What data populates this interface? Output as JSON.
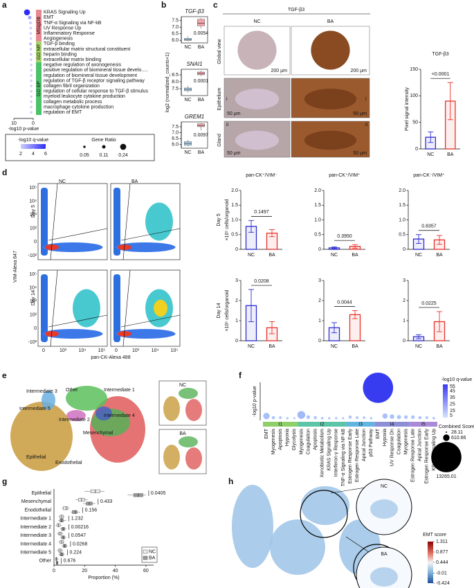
{
  "panel_labels": [
    "a",
    "b",
    "c",
    "d",
    "e",
    "f",
    "g",
    "h"
  ],
  "images": {
    "c": {
      "title": "TGF-β3",
      "groups": [
        "NC",
        "BA"
      ],
      "rows": [
        "Global view",
        "Epithelium",
        "Gland"
      ],
      "scale_global": "200 μm",
      "scale_detail": "50 μm",
      "insets": [
        "ii",
        "i"
      ]
    },
    "d": {
      "groups": [
        "NC",
        "BA"
      ],
      "rows": [
        "Day 5",
        "Day 14"
      ],
      "ylabel": "VIM-Alexa 647",
      "xlabel": "pan-CK-Alexa 488",
      "yticks": [
        "10⁵",
        "10⁴",
        "10³",
        "10²",
        "0",
        "-10²"
      ],
      "xticks": [
        "0",
        "10³",
        "10⁴",
        "10⁵"
      ]
    },
    "e": {
      "clusters": [
        "Intermediate 3",
        "Other",
        "Intermediate 1",
        "Intermediate 5",
        "Intermediate 4",
        "Intermediate 2",
        "Mesenchymal",
        "Epithelial",
        "Enodothelial"
      ],
      "groups": [
        "NC",
        "BA"
      ]
    },
    "h": {
      "groups": [
        "NC",
        "BA"
      ],
      "colorbar_title": "EMT score",
      "colorbar_lim": [
        -0.424,
        1.311
      ],
      "colorbar_ticks": [
        1.311,
        0.877,
        0.444,
        -0.01,
        -0.424
      ]
    }
  },
  "chart_data": [
    {
      "type": "dot",
      "xlabel": "-log10 p-value",
      "xlim": [
        10,
        0
      ],
      "xticks": [
        10,
        0
      ],
      "groups": [
        {
          "name": "MSigDB",
          "color": "#e8878f",
          "terms": [
            "KRAS Signaling Up",
            "EMT",
            "TNF-α Signaling via NF-kB",
            "UV Response Up",
            "Inflammatory Response",
            "Angiogenesis"
          ],
          "values": [
            3.2,
            1.8,
            1.4,
            1.3,
            1.3,
            1.2
          ],
          "q_values": [
            6,
            3,
            2,
            2,
            2,
            1.5
          ],
          "gene_ratios": [
            0.24,
            0.11,
            0.08,
            0.06,
            0.06,
            0.05
          ]
        },
        {
          "name": "GO MF",
          "color": "#a8d46f",
          "terms": [
            "TGF-β binding",
            "extracellular matrix structural constituent",
            "heparin binding",
            "extracellular matrix binding"
          ],
          "values": [
            1.4,
            1.2,
            1.1,
            1.1
          ],
          "q_values": [
            2.5,
            2,
            2,
            2
          ],
          "gene_ratios": [
            0.07,
            0.06,
            0.06,
            0.05
          ]
        },
        {
          "name": "GO BP",
          "color": "#4cc36a",
          "terms": [
            "negative regulation of axonogenesis",
            "positive regulation of biomineral tissue develo.....",
            "regulation of biomineral tissue development",
            "regulation of TGF-β receptor signaling pathway",
            "collagen fibril organization",
            "regulation of cellular response to TGF-β stimulus",
            "myeloid leukocyte cytokine production",
            "collagen metabolic process",
            "macrophage cytokine production",
            "regulation of EMT"
          ],
          "values": [
            1,
            1,
            1,
            1,
            1,
            1,
            1,
            1,
            1,
            1
          ],
          "q_values": [
            1.5,
            1.5,
            1.5,
            1.5,
            1.5,
            1.5,
            1.5,
            1.5,
            1.5,
            1.5
          ],
          "gene_ratios": [
            0.05,
            0.05,
            0.05,
            0.05,
            0.05,
            0.05,
            0.05,
            0.05,
            0.05,
            0.05
          ]
        }
      ],
      "legend": {
        "color_title": "-log10 q-value",
        "color_ticks": [
          2,
          4,
          6
        ],
        "size_title": "Gene Ratio",
        "size_ticks": [
          0.05,
          0.11,
          0.24
        ]
      }
    },
    {
      "type": "box",
      "title": "TGF-β3",
      "categories": [
        "NC",
        "BA"
      ],
      "colors": [
        "#a9cfe8",
        "#f2a3a8"
      ],
      "boxes": [
        [
          5.95,
          6.0,
          6.05,
          6.15,
          6.3
        ],
        [
          6.9,
          7.1,
          7.3,
          7.6,
          7.7
        ]
      ],
      "p_label": "0.0054",
      "ylim": [
        5.8,
        7.8
      ],
      "yticks": [
        {
          "value": 6,
          "label": "6.0"
        },
        6.5,
        {
          "value": 7,
          "label": "7.0"
        },
        7.5
      ]
    },
    {
      "type": "box",
      "title": "SNAI1",
      "ylabel": "log2 (normalized_counts+1)",
      "categories": [
        "NC",
        "BA"
      ],
      "colors": [
        "#a9cfe8",
        "#f2a3a8"
      ],
      "boxes": [
        [
          7.25,
          7.35,
          7.45,
          7.55,
          7.7
        ],
        [
          8.4,
          8.5,
          8.6,
          8.7,
          8.8
        ]
      ],
      "p_label": "0.0001",
      "ylim": [
        7.0,
        8.9
      ],
      "yticks": [
        7.5,
        {
          "value": 8,
          "label": "8.0"
        },
        8.5
      ]
    },
    {
      "type": "box",
      "title": "GREM1",
      "categories": [
        "NC",
        "BA"
      ],
      "colors": [
        "#a9cfe8",
        "#f2a3a8"
      ],
      "boxes": [
        [
          5.85,
          5.95,
          6.1,
          6.25,
          6.4
        ],
        [
          7.2,
          7.5,
          7.6,
          7.75,
          7.8
        ]
      ],
      "p_label": "0.0097",
      "ylim": [
        5.7,
        7.9
      ],
      "yticks": [
        {
          "value": 6,
          "label": "6.0"
        },
        6.5,
        {
          "value": 7,
          "label": "7.0"
        },
        7.5
      ]
    },
    {
      "type": "bar",
      "title": "TGF-β3",
      "ylabel": "Pixel signal intensity",
      "categories": [
        "NC",
        "BA"
      ],
      "colors": [
        "#2b2bd0",
        "#e8302a"
      ],
      "values": [
        22,
        90
      ],
      "errors": [
        10,
        35
      ],
      "p_label": "<0.0001",
      "ylim": [
        0,
        150
      ],
      "yticks": [
        0,
        50,
        100,
        150
      ]
    },
    {
      "type": "bar",
      "title": "pan-CK⁺/VIM⁻",
      "row_label": "Day 5",
      "ylabel": "×10⁵ cells/organoid",
      "categories": [
        "NC",
        "BA"
      ],
      "colors": [
        "#2b2bd0",
        "#e8302a"
      ],
      "values": [
        0.78,
        0.55
      ],
      "errors": [
        0.2,
        0.12
      ],
      "p_label": "0.1497",
      "ylim": [
        0,
        2
      ],
      "yticks": [
        0,
        0.5,
        {
          "value": 1,
          "label": "1.0"
        },
        1.5,
        {
          "value": 2,
          "label": "2.0"
        }
      ]
    },
    {
      "type": "bar",
      "title": "pan-CK⁺/VIM⁺",
      "categories": [
        "NC",
        "BA"
      ],
      "colors": [
        "#2b2bd0",
        "#e8302a"
      ],
      "values": [
        0.05,
        0.1
      ],
      "errors": [
        0.03,
        0.06
      ],
      "p_label": "0.3950",
      "ylim": [
        0,
        2
      ],
      "yticks": [
        0,
        0.5,
        {
          "value": 1,
          "label": "1.0"
        },
        1.5,
        {
          "value": 2,
          "label": "2.0"
        }
      ]
    },
    {
      "type": "bar",
      "title": "pan-CK⁻/VIM⁺",
      "categories": [
        "NC",
        "BA"
      ],
      "colors": [
        "#2b2bd0",
        "#e8302a"
      ],
      "values": [
        0.35,
        0.32
      ],
      "errors": [
        0.15,
        0.15
      ],
      "p_label": "0.8357",
      "ylim": [
        0,
        2
      ],
      "yticks": [
        0,
        0.5,
        {
          "value": 1,
          "label": "1.0"
        },
        1.5,
        {
          "value": 2,
          "label": "2.0"
        }
      ]
    },
    {
      "type": "bar",
      "row_label": "Day 14",
      "ylabel": "×10⁵ cells/organoid",
      "categories": [
        "NC",
        "BA"
      ],
      "colors": [
        "#2b2bd0",
        "#e8302a"
      ],
      "values": [
        1.75,
        0.65
      ],
      "errors": [
        0.8,
        0.3
      ],
      "p_label": "0.0208",
      "ylim": [
        0,
        3
      ],
      "yticks": [
        0,
        1,
        2,
        3
      ]
    },
    {
      "type": "bar",
      "categories": [
        "NC",
        "BA"
      ],
      "colors": [
        "#2b2bd0",
        "#e8302a"
      ],
      "values": [
        0.65,
        1.3
      ],
      "errors": [
        0.25,
        0.2
      ],
      "p_label": "0.0044",
      "ylim": [
        0,
        3
      ],
      "yticks": [
        0,
        1,
        2,
        3
      ]
    },
    {
      "type": "bar",
      "categories": [
        "NC",
        "BA"
      ],
      "colors": [
        "#2b2bd0",
        "#e8302a"
      ],
      "values": [
        0.2,
        0.95
      ],
      "errors": [
        0.1,
        0.5
      ],
      "p_label": "0.0225",
      "ylim": [
        0,
        3
      ],
      "yticks": [
        0,
        1,
        2,
        3
      ]
    },
    {
      "type": "bubble",
      "ylabel": "-log10 p-value",
      "ylim": [
        0,
        70
      ],
      "clusters": [
        {
          "name": "I1",
          "color": "#8fcf6a",
          "terms": [
            "EMT",
            "Myogenesis",
            "Apoptosis",
            "Hypoxia",
            "Glycolysis"
          ],
          "values": [
            8,
            5,
            5,
            4,
            4
          ],
          "q_values": [
            8,
            5,
            5,
            4,
            4
          ],
          "scores": [
            600,
            150,
            120,
            80,
            60
          ]
        },
        {
          "name": "I2",
          "color": "#5cc5a7",
          "terms": [
            "Myogenesis",
            "Coagulation",
            "Apoptosis",
            "Xenobiotic Metabolism",
            "KRAS Signaling Up",
            "Interferon-γ Response",
            "TNF-α Signaling via NF-kB"
          ],
          "values": [
            10,
            6,
            5,
            4,
            4,
            4,
            4
          ],
          "q_values": [
            10,
            6,
            5,
            4,
            4,
            4,
            4
          ],
          "scores": [
            900,
            200,
            150,
            100,
            80,
            80,
            70
          ]
        },
        {
          "name": "I3",
          "color": "#62b5e0",
          "terms": [
            "Estrogen Response Early",
            "Estrogen Response Late",
            "Apical Junction",
            "p53 Pathway"
          ],
          "values": [
            6,
            5,
            5,
            4
          ],
          "q_values": [
            6,
            5,
            5,
            4
          ],
          "scores": [
            150,
            120,
            100,
            80
          ]
        },
        {
          "name": "I4",
          "color": "#8d8fd6",
          "terms": [
            "EMT",
            "Hypoxia",
            "UV Response Dn",
            "Coagulation",
            "Myogenesis"
          ],
          "values": [
            60,
            8,
            7,
            6,
            6
          ],
          "q_values": [
            55,
            8,
            7,
            6,
            6
          ],
          "scores": [
            13265.01,
            400,
            300,
            250,
            200
          ]
        },
        {
          "name": "I5",
          "color": "#a98ad8",
          "terms": [
            "Estrogen Response Late",
            "Apical Junction",
            "Estrogen Response Early",
            "KRAS Signaling Up"
          ],
          "values": [
            6,
            5,
            5,
            4
          ],
          "q_values": [
            6,
            5,
            5,
            4
          ],
          "scores": [
            200,
            150,
            120,
            100
          ]
        }
      ],
      "legend": {
        "color_title": "-log10 q-value",
        "color_ticks": [
          55,
          45,
          35,
          25,
          15,
          5
        ],
        "size_title": "Combined Score",
        "size_ticks": [
          28.11,
          610.66,
          13265.01
        ]
      }
    },
    {
      "type": "hbox",
      "xlabel": "Proportion (%)",
      "categories": [
        "Epithelial",
        "Mesenchymal",
        "Enodothelial",
        "Intermediate 1",
        "Intermediate 2",
        "Intermediate 3",
        "Intermediate 4",
        "Intermediate 5",
        "Other"
      ],
      "p_labels": [
        "0.0405",
        "0.433",
        "0.156",
        "1.232",
        "0.00216",
        "0.0547",
        "0.0268",
        "0.224",
        "0.676"
      ],
      "xlim": [
        0,
        65
      ],
      "xticks": [
        0,
        20,
        40,
        60
      ],
      "series": [
        {
          "name": "NC",
          "color": "#eeeeee",
          "boxes": [
            [
              20,
              24,
              27,
              30,
              33
            ],
            [
              14,
              16,
              18,
              20,
              22
            ],
            [
              5,
              6,
              8,
              9,
              10
            ],
            [
              3,
              4,
              5,
              6,
              7
            ],
            [
              1,
              2,
              3,
              4,
              5
            ],
            [
              2,
              3,
              4,
              5,
              6
            ],
            [
              3,
              4,
              5,
              6,
              7
            ],
            [
              2,
              3,
              4,
              5,
              6
            ],
            [
              0.5,
              1,
              1.5,
              2,
              3
            ]
          ]
        },
        {
          "name": "BA",
          "color": "#9a9a9a",
          "boxes": [
            [
              48,
              52,
              55,
              58,
              60
            ],
            [
              19,
              21,
              23,
              25,
              27
            ],
            [
              11,
              12,
              14,
              15,
              17
            ],
            [
              3,
              4,
              5,
              6,
              8
            ],
            [
              4,
              5,
              6,
              7,
              8
            ],
            [
              4,
              5,
              6,
              7,
              8
            ],
            [
              5,
              6,
              7,
              8,
              9
            ],
            [
              3,
              4,
              5,
              6,
              7
            ],
            [
              1,
              1.5,
              2,
              2.5,
              3
            ]
          ]
        }
      ]
    }
  ]
}
